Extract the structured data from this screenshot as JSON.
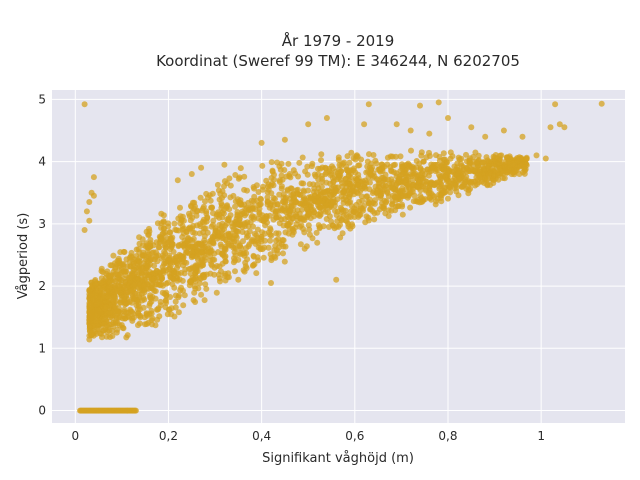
{
  "chart_data": {
    "type": "scatter",
    "title_line1": "År 1979 - 2019",
    "title_line2": "Koordinat (Sweref 99 TM): E 346244, N 6202705",
    "xlabel": "Signifikant våghöjd (m)",
    "ylabel": "Vågperiod (s)",
    "xlim": [
      -0.05,
      1.18
    ],
    "ylim": [
      -0.2,
      5.15
    ],
    "x_ticks": [
      0,
      0.2,
      0.4,
      0.6,
      0.8,
      1
    ],
    "x_tick_labels": [
      "0",
      "0,2",
      "0,4",
      "0,6",
      "0,8",
      "1"
    ],
    "y_ticks": [
      0,
      1,
      2,
      3,
      4,
      5
    ],
    "y_tick_labels": [
      "0",
      "1",
      "2",
      "3",
      "4",
      "5"
    ],
    "grid": true,
    "legend": "none",
    "marker_color": "#d4a220",
    "plot_background": "#e5e5ef",
    "band": {
      "lower": [
        [
          0.03,
          1.1
        ],
        [
          0.1,
          1.1
        ],
        [
          0.2,
          1.35
        ],
        [
          0.3,
          1.75
        ],
        [
          0.4,
          2.2
        ],
        [
          0.5,
          2.55
        ],
        [
          0.6,
          2.85
        ],
        [
          0.7,
          3.1
        ],
        [
          0.8,
          3.35
        ],
        [
          0.9,
          3.6
        ],
        [
          0.97,
          3.8
        ]
      ],
      "upper": [
        [
          0.03,
          2.15
        ],
        [
          0.1,
          2.65
        ],
        [
          0.2,
          3.3
        ],
        [
          0.3,
          3.8
        ],
        [
          0.4,
          4.05
        ],
        [
          0.5,
          4.15
        ],
        [
          0.6,
          4.2
        ],
        [
          0.7,
          4.2
        ],
        [
          0.8,
          4.2
        ],
        [
          0.9,
          4.15
        ],
        [
          0.97,
          4.1
        ]
      ]
    },
    "zero_period_series": {
      "x_range": [
        0.01,
        0.13
      ],
      "y": 0
    },
    "outliers": [
      {
        "x": 0.02,
        "y": 4.92
      },
      {
        "x": 0.03,
        "y": 3.35
      },
      {
        "x": 0.025,
        "y": 3.2
      },
      {
        "x": 0.03,
        "y": 3.05
      },
      {
        "x": 0.02,
        "y": 2.9
      },
      {
        "x": 0.035,
        "y": 3.5
      },
      {
        "x": 0.04,
        "y": 3.45
      },
      {
        "x": 0.04,
        "y": 3.75
      },
      {
        "x": 0.055,
        "y": 2.05
      },
      {
        "x": 0.045,
        "y": 1.7
      },
      {
        "x": 0.5,
        "y": 4.6
      },
      {
        "x": 0.54,
        "y": 4.7
      },
      {
        "x": 0.62,
        "y": 4.6
      },
      {
        "x": 0.69,
        "y": 4.6
      },
      {
        "x": 0.72,
        "y": 4.5
      },
      {
        "x": 0.76,
        "y": 4.45
      },
      {
        "x": 0.8,
        "y": 4.7
      },
      {
        "x": 0.85,
        "y": 4.55
      },
      {
        "x": 0.88,
        "y": 4.4
      },
      {
        "x": 0.92,
        "y": 4.5
      },
      {
        "x": 0.96,
        "y": 4.4
      },
      {
        "x": 0.99,
        "y": 4.1
      },
      {
        "x": 1.01,
        "y": 4.05
      },
      {
        "x": 1.02,
        "y": 4.55
      },
      {
        "x": 1.04,
        "y": 4.6
      },
      {
        "x": 1.05,
        "y": 4.55
      },
      {
        "x": 1.03,
        "y": 4.92
      },
      {
        "x": 1.13,
        "y": 4.93
      },
      {
        "x": 0.63,
        "y": 4.92
      },
      {
        "x": 0.74,
        "y": 4.9
      },
      {
        "x": 0.78,
        "y": 4.95
      },
      {
        "x": 0.56,
        "y": 2.1
      },
      {
        "x": 0.42,
        "y": 2.05
      },
      {
        "x": 0.35,
        "y": 2.1
      },
      {
        "x": 0.29,
        "y": 2.2
      },
      {
        "x": 0.32,
        "y": 3.95
      },
      {
        "x": 0.27,
        "y": 3.9
      },
      {
        "x": 0.22,
        "y": 3.7
      },
      {
        "x": 0.25,
        "y": 3.8
      },
      {
        "x": 0.96,
        "y": 3.95
      },
      {
        "x": 0.93,
        "y": 4.0
      },
      {
        "x": 0.56,
        "y": 2.95
      },
      {
        "x": 0.45,
        "y": 4.35
      },
      {
        "x": 0.4,
        "y": 4.3
      }
    ]
  }
}
